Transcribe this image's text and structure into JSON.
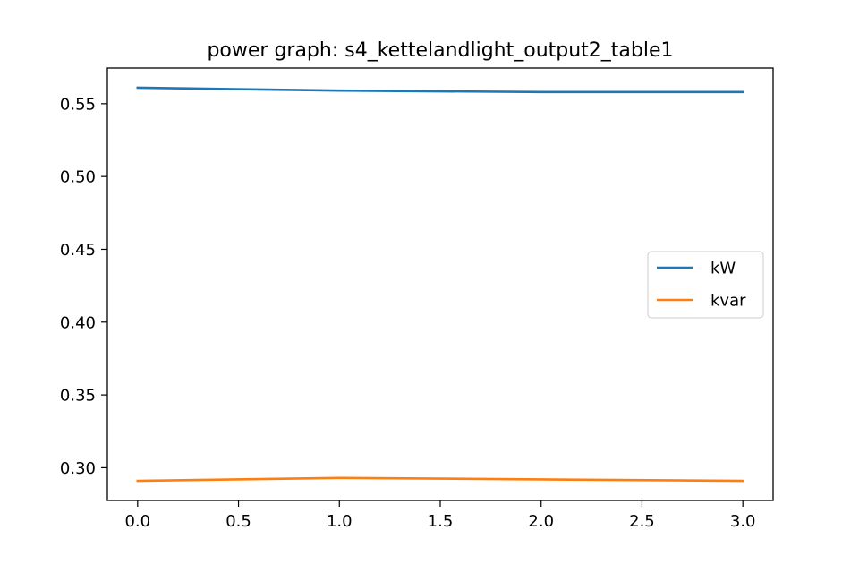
{
  "chart_data": {
    "type": "line",
    "title": "power graph: s4_kettelandlight_output2_table1",
    "xlabel": "",
    "ylabel": "",
    "x": [
      0,
      1,
      2,
      3
    ],
    "xlim": [
      -0.15,
      3.15
    ],
    "ylim": [
      0.2775,
      0.5745
    ],
    "xticks": [
      0.0,
      0.5,
      1.0,
      1.5,
      2.0,
      2.5,
      3.0
    ],
    "xtick_labels": [
      "0.0",
      "0.5",
      "1.0",
      "1.5",
      "2.0",
      "2.5",
      "3.0"
    ],
    "yticks": [
      0.3,
      0.35,
      0.4,
      0.45,
      0.5,
      0.55
    ],
    "ytick_labels": [
      "0.30",
      "0.35",
      "0.40",
      "0.45",
      "0.50",
      "0.55"
    ],
    "grid": false,
    "legend_position": "center-right",
    "series": [
      {
        "name": "kW",
        "color": "#1f77b4",
        "values": [
          0.561,
          0.559,
          0.558,
          0.558
        ]
      },
      {
        "name": "kvar",
        "color": "#ff7f0e",
        "values": [
          0.291,
          0.293,
          0.292,
          0.291
        ]
      }
    ]
  }
}
